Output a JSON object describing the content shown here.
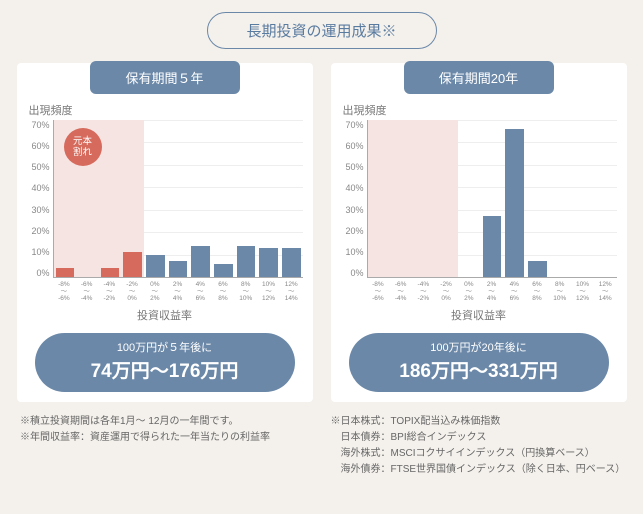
{
  "title": "長期投資の運用成果※",
  "colors": {
    "accent": "#6b88a8",
    "loss_bar": "#d66a5c",
    "gain_bar": "#6b88a8",
    "shade": "#f6e4e2",
    "grid": "#eeeeee",
    "panel_bg": "#ffffff",
    "page_bg": "#f4f1ec"
  },
  "yaxis": {
    "label": "出現頻度",
    "ticks": [
      "70%",
      "60%",
      "50%",
      "40%",
      "30%",
      "20%",
      "10%",
      "0%"
    ],
    "max": 70
  },
  "xaxis": {
    "label": "投資収益率",
    "ticks": [
      "-8%\n〜\n-6%",
      "-6%\n〜\n-4%",
      "-4%\n〜\n-2%",
      "-2%\n〜\n0%",
      "0%\n〜\n2%",
      "2%\n〜\n4%",
      "4%\n〜\n6%",
      "6%\n〜\n8%",
      "8%\n〜\n10%",
      "10%\n〜\n12%",
      "12%\n〜\n14%"
    ]
  },
  "panels": [
    {
      "tab": "保有期間５年",
      "loss_badge": [
        "元本",
        "割れ"
      ],
      "shade_bins": 4,
      "values": [
        4,
        0,
        4,
        11,
        10,
        7,
        14,
        6,
        14,
        13,
        13
      ],
      "bar_colors": [
        "#d66a5c",
        "#d66a5c",
        "#d66a5c",
        "#d66a5c",
        "#6b88a8",
        "#6b88a8",
        "#6b88a8",
        "#6b88a8",
        "#6b88a8",
        "#6b88a8",
        "#6b88a8"
      ],
      "result_line1": "100万円が５年後に",
      "result_line2": "74万円〜176万円"
    },
    {
      "tab": "保有期間20年",
      "loss_badge": null,
      "shade_bins": 4,
      "values": [
        0,
        0,
        0,
        0,
        0,
        27,
        66,
        7,
        0,
        0,
        0
      ],
      "bar_colors": [
        "#6b88a8",
        "#6b88a8",
        "#6b88a8",
        "#6b88a8",
        "#6b88a8",
        "#6b88a8",
        "#6b88a8",
        "#6b88a8",
        "#6b88a8",
        "#6b88a8",
        "#6b88a8"
      ],
      "result_line1": "100万円が20年後に",
      "result_line2": "186万円〜331万円"
    }
  ],
  "footnotes": {
    "left": [
      "※積立投資期間は各年1月〜 12月の一年間です。",
      "※年間収益率：資産運用で得られた一年当たりの利益率"
    ],
    "right": [
      "※日本株式：TOPIX配当込み株価指数",
      "　日本債券：BPI総合インデックス",
      "　海外株式：MSCIコクサイインデックス（円換算ベース）",
      "　海外債券：FTSE世界国債インデックス（除く日本、円ベース）"
    ]
  }
}
